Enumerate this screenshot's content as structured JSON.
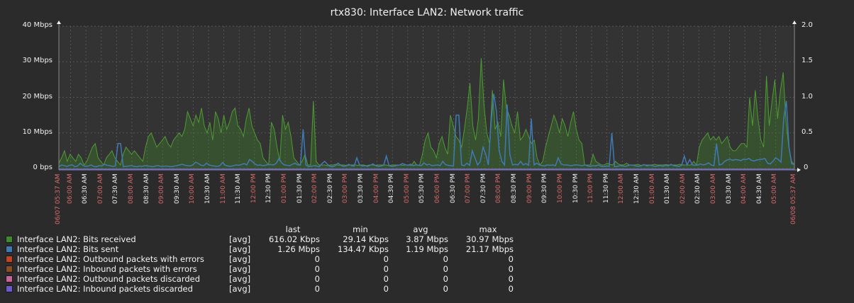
{
  "title": "rtx830: Interface LAN2: Network traffic",
  "chart_data": {
    "type": "area",
    "title": "rtx830: Interface LAN2: Network traffic",
    "xlabel": "",
    "ylabel": "",
    "ylim": [
      0,
      40
    ],
    "ylim_right": [
      0,
      2.0
    ],
    "y_ticks_left": [
      "0 bps",
      "10 Mbps",
      "20 Mbps",
      "30 Mbps",
      "40 Mbps"
    ],
    "y_ticks_right": [
      "0",
      "0.5",
      "1.0",
      "1.5",
      "2.0"
    ],
    "grid": true,
    "x_start": "06/07 05:37 AM",
    "x_end": "06/08 05:37 AM",
    "x_ticks": [
      {
        "label": "06/07 05:37 AM",
        "major": true
      },
      {
        "label": "06:00 AM",
        "major": true
      },
      {
        "label": "06:30 AM",
        "major": false
      },
      {
        "label": "07:00 AM",
        "major": true
      },
      {
        "label": "07:30 AM",
        "major": false
      },
      {
        "label": "08:00 AM",
        "major": true
      },
      {
        "label": "08:30 AM",
        "major": false
      },
      {
        "label": "09:00 AM",
        "major": true
      },
      {
        "label": "09:30 AM",
        "major": false
      },
      {
        "label": "10:00 AM",
        "major": true
      },
      {
        "label": "10:30 AM",
        "major": false
      },
      {
        "label": "11:00 AM",
        "major": true
      },
      {
        "label": "11:30 AM",
        "major": false
      },
      {
        "label": "12:00 PM",
        "major": true
      },
      {
        "label": "12:30 PM",
        "major": false
      },
      {
        "label": "01:00 PM",
        "major": true
      },
      {
        "label": "01:30 PM",
        "major": false
      },
      {
        "label": "02:00 PM",
        "major": true
      },
      {
        "label": "02:30 PM",
        "major": false
      },
      {
        "label": "03:00 PM",
        "major": true
      },
      {
        "label": "03:30 PM",
        "major": false
      },
      {
        "label": "04:00 PM",
        "major": true
      },
      {
        "label": "04:30 PM",
        "major": false
      },
      {
        "label": "05:00 PM",
        "major": true
      },
      {
        "label": "05:30 PM",
        "major": false
      },
      {
        "label": "06:00 PM",
        "major": true
      },
      {
        "label": "06:30 PM",
        "major": false
      },
      {
        "label": "07:00 PM",
        "major": true
      },
      {
        "label": "07:30 PM",
        "major": false
      },
      {
        "label": "08:00 PM",
        "major": true
      },
      {
        "label": "08:30 PM",
        "major": false
      },
      {
        "label": "09:00 PM",
        "major": true
      },
      {
        "label": "09:30 PM",
        "major": false
      },
      {
        "label": "10:00 PM",
        "major": true
      },
      {
        "label": "10:30 PM",
        "major": false
      },
      {
        "label": "11:00 PM",
        "major": true
      },
      {
        "label": "11:30 PM",
        "major": false
      },
      {
        "label": "12:00 AM",
        "major": true
      },
      {
        "label": "12:30 AM",
        "major": false
      },
      {
        "label": "01:00 AM",
        "major": true
      },
      {
        "label": "01:30 AM",
        "major": false
      },
      {
        "label": "02:00 AM",
        "major": true
      },
      {
        "label": "02:30 AM",
        "major": false
      },
      {
        "label": "03:00 AM",
        "major": true
      },
      {
        "label": "03:30 AM",
        "major": false
      },
      {
        "label": "04:00 AM",
        "major": true
      },
      {
        "label": "04:30 AM",
        "major": false
      },
      {
        "label": "05:00 AM",
        "major": true
      },
      {
        "label": "06/08 05:37 AM",
        "major": true
      }
    ],
    "series": [
      {
        "name": "Interface LAN2: Bits received",
        "color": "#3f8a2a",
        "unit": "Mbps",
        "values": [
          1.5,
          3,
          5,
          2,
          4,
          3,
          2,
          4,
          3,
          1,
          2,
          4,
          6,
          7,
          3,
          2,
          1,
          3,
          4,
          5,
          3,
          2,
          1,
          4,
          6,
          5,
          4,
          5,
          4,
          3,
          2,
          6,
          9,
          10,
          8,
          6,
          7,
          8,
          9,
          7,
          6,
          8,
          9,
          10,
          9,
          11,
          16,
          14,
          12,
          15,
          13,
          17,
          12,
          10,
          13,
          8,
          16,
          14,
          10,
          15,
          11,
          13,
          16,
          17,
          12,
          11,
          9,
          14,
          17,
          12,
          10,
          8,
          7,
          3,
          2,
          1,
          13,
          11,
          6,
          2,
          15,
          11,
          13,
          9,
          3,
          2,
          1,
          2,
          4,
          1,
          1,
          19,
          2,
          1,
          1,
          1,
          0.8,
          1,
          1,
          1.2,
          0.9,
          1,
          1,
          0.8,
          1,
          1,
          1,
          0.9,
          1,
          1,
          0.8,
          1,
          1,
          0.9,
          1,
          1,
          1,
          1,
          0.8,
          1,
          1,
          1,
          1,
          0.9,
          1,
          1,
          0.8,
          2,
          1,
          1,
          4,
          8,
          10,
          6,
          5,
          3,
          7,
          9,
          6,
          4,
          15,
          12,
          9,
          8,
          6,
          11,
          17,
          24,
          12,
          8,
          14,
          31,
          18,
          10,
          7,
          22,
          11,
          13,
          9,
          25,
          17,
          15,
          12,
          10,
          16,
          8,
          9,
          11,
          9,
          7,
          8,
          3,
          1,
          2,
          6,
          9,
          12,
          15,
          13,
          10,
          14,
          12,
          9,
          13,
          16,
          11,
          8,
          7,
          1,
          1,
          1,
          4,
          2,
          1.5,
          1,
          1,
          1.5,
          1.2,
          1,
          2,
          1.3,
          1,
          1,
          1.5,
          1,
          1,
          1,
          1.2,
          0.9,
          1,
          1,
          1,
          1,
          1.2,
          1,
          1,
          1,
          1.1,
          1,
          1,
          1,
          1,
          1.2,
          1,
          1,
          1,
          1,
          2,
          1,
          6,
          8,
          9,
          10,
          8,
          9,
          8,
          9,
          7,
          8,
          9,
          6,
          5,
          5,
          6,
          7,
          7,
          6,
          20,
          12,
          22,
          14,
          8,
          6,
          26,
          12,
          19,
          25,
          14,
          22,
          27,
          13,
          6,
          2,
          1
        ]
      },
      {
        "name": "Interface LAN2: Bits sent",
        "color": "#3f7ab5",
        "unit": "Mbps",
        "values": [
          0.5,
          1,
          0.8,
          0.6,
          0.9,
          1,
          0.5,
          0.7,
          1.5,
          0.8,
          0.6,
          0.7,
          1,
          0.6,
          0.5,
          0.8,
          0.7,
          1.2,
          0.9,
          0.8,
          0.6,
          0.7,
          7,
          7,
          0.5,
          0.6,
          0.7,
          0.8,
          0.6,
          0.5,
          0.7,
          0.6,
          0.8,
          0.7,
          0.6,
          0.5,
          0.7,
          0.8,
          0.6,
          0.6,
          0.7,
          0.6,
          0.5,
          0.7,
          0.8,
          1,
          1.2,
          0.9,
          0.8,
          0.7,
          1.1,
          1.8,
          1.4,
          0.9,
          0.8,
          1.5,
          1,
          0.8,
          0.7,
          0.6,
          0.8,
          1.7,
          0.9,
          0.7,
          0.6,
          0.8,
          1,
          0.9,
          1.1,
          1.4,
          1,
          2.5,
          2,
          1.3,
          0.9,
          1,
          0.8,
          0.9,
          1.2,
          1.1,
          1,
          1.5,
          2.8,
          1.6,
          1,
          0.9,
          0.8,
          1.2,
          1.5,
          1,
          1,
          11,
          1,
          0.5,
          0.6,
          0.8,
          0.7,
          0.5,
          1.4,
          2,
          1.2,
          0.6,
          0.5,
          0.8,
          1.5,
          0.9,
          0.6,
          0.7,
          1.2,
          0.8,
          0.7,
          3,
          1,
          0.7,
          0.8,
          0.6,
          0.9,
          1.3,
          0.8,
          0.6,
          0.7,
          0.9,
          3.5,
          0.8,
          0.6,
          0.7,
          0.9,
          1,
          1.4,
          1.1,
          0.9,
          1.2,
          0.8,
          1,
          0.9,
          0.8,
          1.6,
          1,
          1.2,
          0.8,
          0.9,
          1,
          0.8,
          2,
          1.1,
          0.9,
          0.8,
          0.7,
          15,
          15,
          1,
          0.8,
          1.5,
          0.9,
          5,
          3,
          1,
          2,
          6,
          4,
          1,
          13,
          21,
          16,
          5,
          2,
          1,
          18,
          4,
          1,
          1.2,
          1,
          2,
          1,
          1.4,
          0.9,
          14,
          1,
          1.5,
          1,
          0.8,
          0.7,
          1,
          0.9,
          1,
          0.8,
          3,
          1.4,
          1,
          1,
          0.9,
          0.8,
          1,
          1,
          0.9,
          0.8,
          1,
          0.7,
          0.6,
          0.8,
          0.7,
          1,
          0.6,
          0.5,
          0.7,
          0.6,
          10,
          0.5,
          0.6,
          0.8,
          0.7,
          0.6,
          0.8,
          1,
          0.9,
          0.7,
          0.6,
          0.8,
          1.1,
          0.7,
          0.9,
          0.8,
          0.6,
          0.7,
          0.8,
          0.6,
          0.9,
          0.7,
          1.2,
          0.8,
          0.7,
          0.6,
          0.9,
          3.5,
          1,
          2.5,
          1,
          0.9,
          1,
          1.3,
          1,
          1.2,
          1.6,
          1,
          0.8,
          7,
          1,
          1.2,
          2,
          2.4,
          2.6,
          2.3,
          2.5,
          2.4,
          2.2,
          2.6,
          2.5,
          2.8,
          2.3,
          2.1,
          2.4,
          2.5,
          2.6,
          2.8,
          1.5,
          1.3,
          2,
          3,
          2.5,
          1.8,
          14,
          19,
          6,
          1.3,
          1.2
        ]
      },
      {
        "name": "Interface LAN2: Outbound packets with errors",
        "color": "#c6421f",
        "values": [
          0
        ]
      },
      {
        "name": "Interface LAN2: Inbound packets with errors",
        "color": "#8c4d24",
        "values": [
          0
        ]
      },
      {
        "name": "Interface LAN2: Outbound packets discarded",
        "color": "#c9639a",
        "values": [
          0
        ]
      },
      {
        "name": "Interface LAN2: Inbound packets discarded",
        "color": "#6a5acd",
        "values": [
          0
        ]
      }
    ]
  },
  "legend": {
    "headers": {
      "last": "last",
      "min": "min",
      "avg": "avg",
      "max": "max"
    },
    "rows": [
      {
        "name": "Interface LAN2: Bits received",
        "agg": "[avg]",
        "last": "616.02 Kbps",
        "min": "29.14 Kbps",
        "avg": "3.87 Mbps",
        "max": "30.97 Mbps",
        "color": "#3f8a2a"
      },
      {
        "name": "Interface LAN2: Bits sent",
        "agg": "[avg]",
        "last": "1.26 Mbps",
        "min": "134.47 Kbps",
        "avg": "1.19 Mbps",
        "max": "21.17 Mbps",
        "color": "#3f7ab5"
      },
      {
        "name": "Interface LAN2: Outbound packets with errors",
        "agg": "[avg]",
        "last": "0",
        "min": "0",
        "avg": "0",
        "max": "0",
        "color": "#c6421f"
      },
      {
        "name": "Interface LAN2: Inbound packets with errors",
        "agg": "[avg]",
        "last": "0",
        "min": "0",
        "avg": "0",
        "max": "0",
        "color": "#8c4d24"
      },
      {
        "name": "Interface LAN2: Outbound packets discarded",
        "agg": "[avg]",
        "last": "0",
        "min": "0",
        "avg": "0",
        "max": "0",
        "color": "#c9639a"
      },
      {
        "name": "Interface LAN2: Inbound packets discarded",
        "agg": "[avg]",
        "last": "0",
        "min": "0",
        "avg": "0",
        "max": "0",
        "color": "#6a5acd"
      }
    ]
  },
  "colors": {
    "background": "#2b2b2b",
    "plot_background": "#333333",
    "grid": "#555555",
    "axis": "#888888",
    "major_tick_label": "#d86a6a",
    "minor_tick_label": "#f0f0f0"
  }
}
